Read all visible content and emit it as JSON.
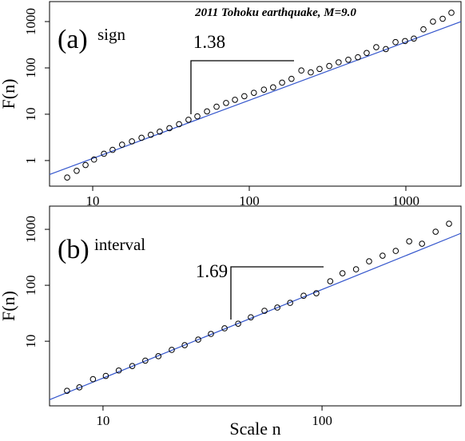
{
  "chart_data": [
    {
      "type": "scatter",
      "title": "2011 Tohoku earthquake,  M=9.0",
      "panel_label": "(a)",
      "panel_sublabel": "sign",
      "ylabel": "F(n)",
      "slope_label": "1.38",
      "xscale": "log",
      "yscale": "log",
      "xlim": [
        5.3,
        2250
      ],
      "ylim": [
        0.28,
        2700
      ],
      "xticks": [
        10,
        100,
        1000
      ],
      "yticks": [
        1,
        10,
        100,
        1000
      ],
      "marker_color": "#000000",
      "x": [
        6.87,
        7.9,
        9.0,
        10.2,
        11.8,
        13.4,
        15.4,
        17.8,
        20.5,
        23.5,
        26.8,
        30.9,
        35.6,
        40.9,
        46.6,
        53.7,
        61.8,
        71.1,
        81,
        93,
        107,
        124,
        142,
        162,
        186,
        215,
        247,
        281,
        324,
        372,
        429,
        494,
        562,
        647,
        745,
        859,
        988,
        1125,
        1295,
        1490,
        1718,
        1954
      ],
      "values": [
        0.43,
        0.6,
        0.8,
        1.05,
        1.4,
        1.7,
        2.2,
        2.6,
        3.1,
        3.6,
        4.2,
        5.0,
        6.1,
        7.6,
        9.0,
        11.5,
        14.5,
        17.5,
        20.5,
        24.5,
        29,
        34,
        38,
        48,
        58,
        88,
        80,
        95,
        110,
        132,
        150,
        170,
        210,
        280,
        255,
        360,
        380,
        430,
        680,
        1000,
        1150,
        1550
      ],
      "fit": {
        "color": "#3355cc",
        "x": [
          5.3,
          2250
        ],
        "values": [
          0.5,
          1000
        ]
      }
    },
    {
      "type": "scatter",
      "panel_label": "(b)",
      "panel_sublabel": "interval",
      "ylabel": "F(n)",
      "xlabel": "Scale n",
      "slope_label": "1.69",
      "xscale": "log",
      "yscale": "log",
      "xlim": [
        5.7,
        431
      ],
      "ylim": [
        0.7,
        2600
      ],
      "xticks": [
        10,
        100
      ],
      "yticks": [
        10,
        100,
        1000
      ],
      "marker_color": "#000000",
      "x": [
        6.85,
        7.8,
        9.0,
        10.3,
        11.8,
        13.6,
        15.6,
        17.9,
        20.6,
        23.6,
        27.2,
        31.1,
        35.9,
        41.4,
        47.3,
        54.6,
        62.5,
        71.5,
        82.4,
        94.2,
        109,
        124,
        143,
        164,
        189,
        217,
        250,
        286,
        330,
        380
      ],
      "values": [
        1.3,
        1.5,
        2.1,
        2.4,
        3.0,
        3.6,
        4.5,
        5.4,
        7.0,
        8.5,
        10.7,
        13.5,
        17,
        20.6,
        26.8,
        35,
        40,
        48.5,
        65,
        72,
        118,
        164,
        193,
        268,
        338,
        411,
        611,
        553,
        906,
        1260
      ],
      "fit": {
        "color": "#3355cc",
        "x": [
          5.7,
          431
        ],
        "values": [
          0.9,
          850
        ]
      }
    }
  ]
}
